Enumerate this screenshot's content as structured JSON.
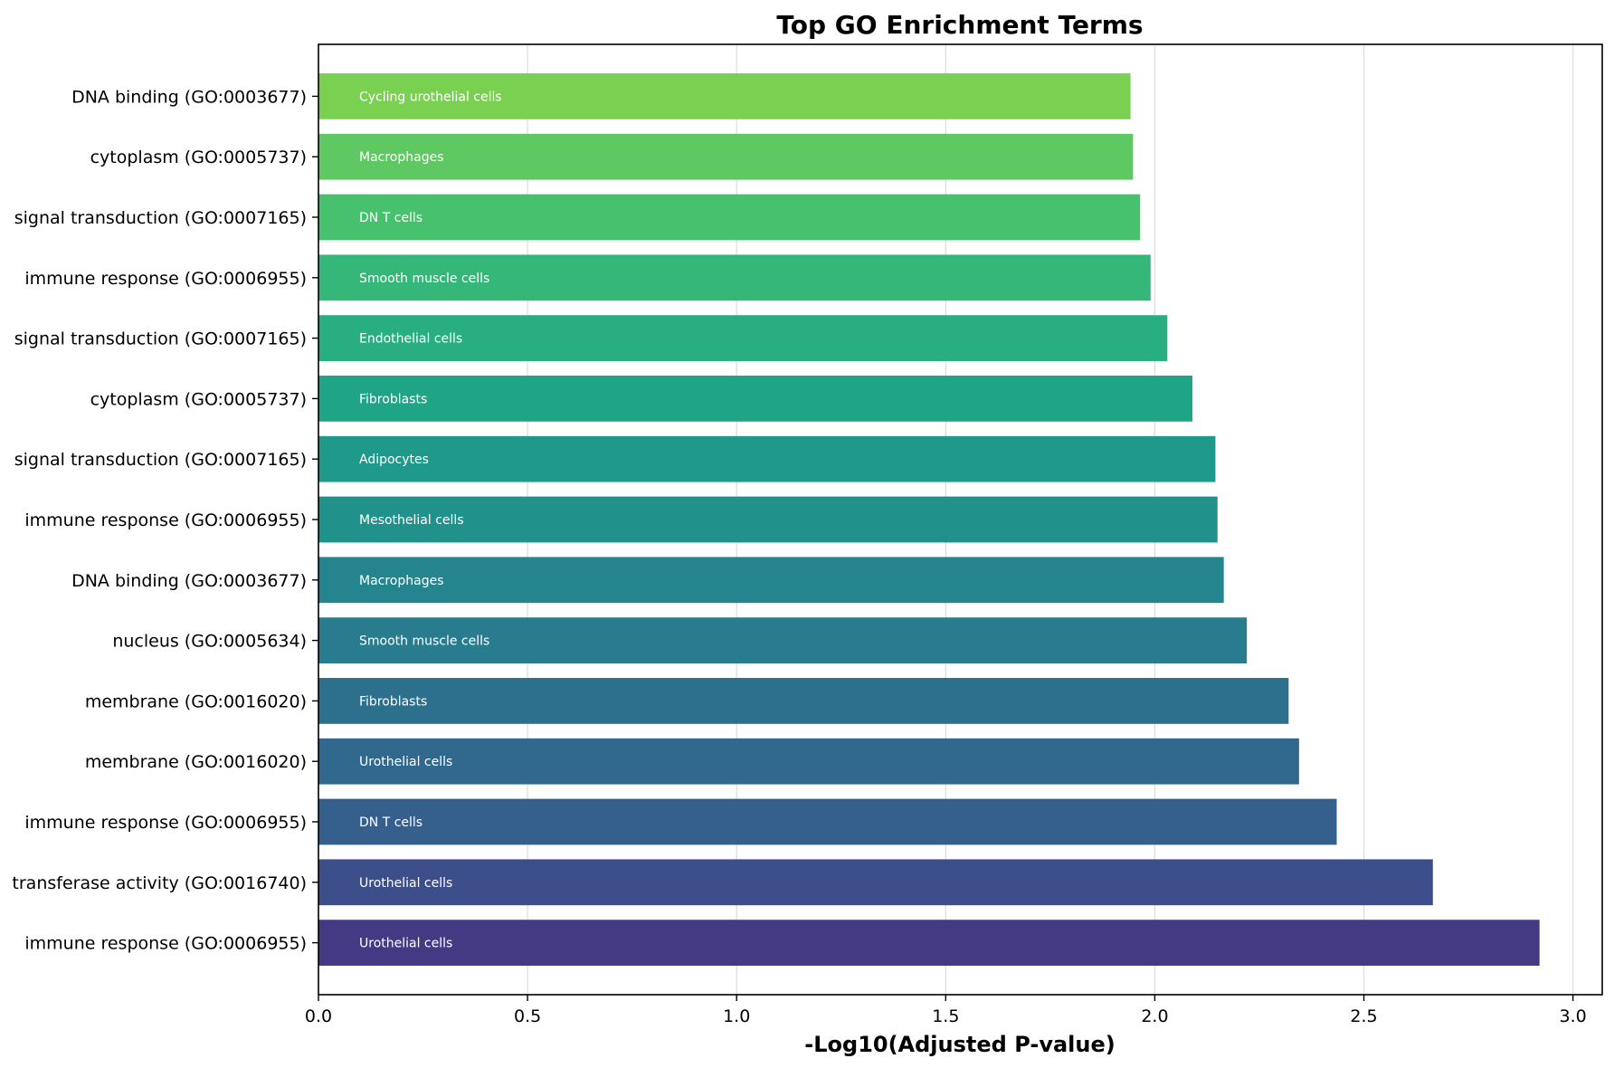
{
  "chart_data": {
    "type": "bar",
    "orientation": "horizontal",
    "title": "Top GO Enrichment Terms",
    "xlabel": "-Log10(Adjusted P-value)",
    "ylabel": "",
    "xlim": [
      0,
      3.07
    ],
    "xticks": [
      "0.0",
      "0.5",
      "1.0",
      "1.5",
      "2.0",
      "2.5",
      "3.0"
    ],
    "xtick_values": [
      0,
      0.5,
      1.0,
      1.5,
      2.0,
      2.5,
      3.0
    ],
    "grid": "vertical",
    "legend": "none",
    "bars": [
      {
        "term": "immune response (GO:0006955)",
        "cell_type": "Urothelial cells",
        "value": 2.92,
        "color": "#443983"
      },
      {
        "term": "transferase activity (GO:0016740)",
        "cell_type": "Urothelial cells",
        "value": 2.665,
        "color": "#3c4f8a"
      },
      {
        "term": "immune response (GO:0006955)",
        "cell_type": "DN T cells",
        "value": 2.435,
        "color": "#355f8d"
      },
      {
        "term": "membrane (GO:0016020)",
        "cell_type": "Urothelial cells",
        "value": 2.345,
        "color": "#31688e"
      },
      {
        "term": "membrane (GO:0016020)",
        "cell_type": "Fibroblasts",
        "value": 2.32,
        "color": "#2d708e"
      },
      {
        "term": "nucleus (GO:0005634)",
        "cell_type": "Smooth muscle cells",
        "value": 2.22,
        "color": "#297b8e"
      },
      {
        "term": "DNA binding (GO:0003677)",
        "cell_type": "Macrophages",
        "value": 2.165,
        "color": "#25858e"
      },
      {
        "term": "immune response (GO:0006955)",
        "cell_type": "Mesothelial cells",
        "value": 2.15,
        "color": "#21918c"
      },
      {
        "term": "signal transduction (GO:0007165)",
        "cell_type": "Adipocytes",
        "value": 2.145,
        "color": "#1f9a8a"
      },
      {
        "term": "cytoplasm (GO:0005737)",
        "cell_type": "Fibroblasts",
        "value": 2.09,
        "color": "#20a486"
      },
      {
        "term": "signal transduction (GO:0007165)",
        "cell_type": "Endothelial cells",
        "value": 2.03,
        "color": "#28ae80"
      },
      {
        "term": "immune response (GO:0006955)",
        "cell_type": "Smooth muscle cells",
        "value": 1.99,
        "color": "#35b779"
      },
      {
        "term": "signal transduction (GO:0007165)",
        "cell_type": "DN T cells",
        "value": 1.965,
        "color": "#48c16e"
      },
      {
        "term": "cytoplasm (GO:0005737)",
        "cell_type": "Macrophages",
        "value": 1.948,
        "color": "#5ec962"
      },
      {
        "term": "DNA binding (GO:0003677)",
        "cell_type": "Cycling urothelial cells",
        "value": 1.942,
        "color": "#7ad151"
      }
    ]
  }
}
